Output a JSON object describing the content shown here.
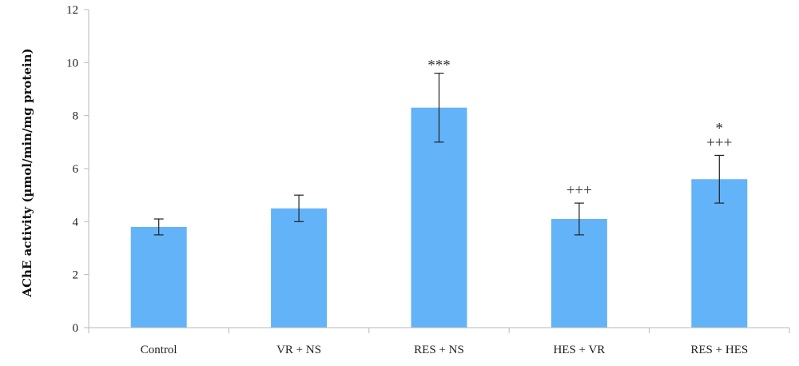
{
  "chart_data": {
    "type": "bar",
    "categories": [
      "Control",
      "VR + NS",
      "RES + NS",
      "HES + VR",
      "RES + HES"
    ],
    "series": [
      {
        "values": [
          3.8,
          4.5,
          8.3,
          4.1,
          5.6
        ],
        "error": [
          0.3,
          0.5,
          1.3,
          0.6,
          0.9
        ],
        "color": "#63b3f8"
      }
    ],
    "annotations": [
      {
        "category_index": 2,
        "lines": [
          "***"
        ]
      },
      {
        "category_index": 3,
        "lines": [
          "+++"
        ]
      },
      {
        "category_index": 4,
        "lines": [
          "*",
          "+++"
        ]
      }
    ],
    "ylabel": "AChE activity (µmol/min/mg protein)",
    "xlabel": "",
    "ylim": [
      0,
      12
    ],
    "yticks": [
      0,
      2,
      4,
      6,
      8,
      10,
      12
    ],
    "grid": false,
    "legend": "none"
  }
}
